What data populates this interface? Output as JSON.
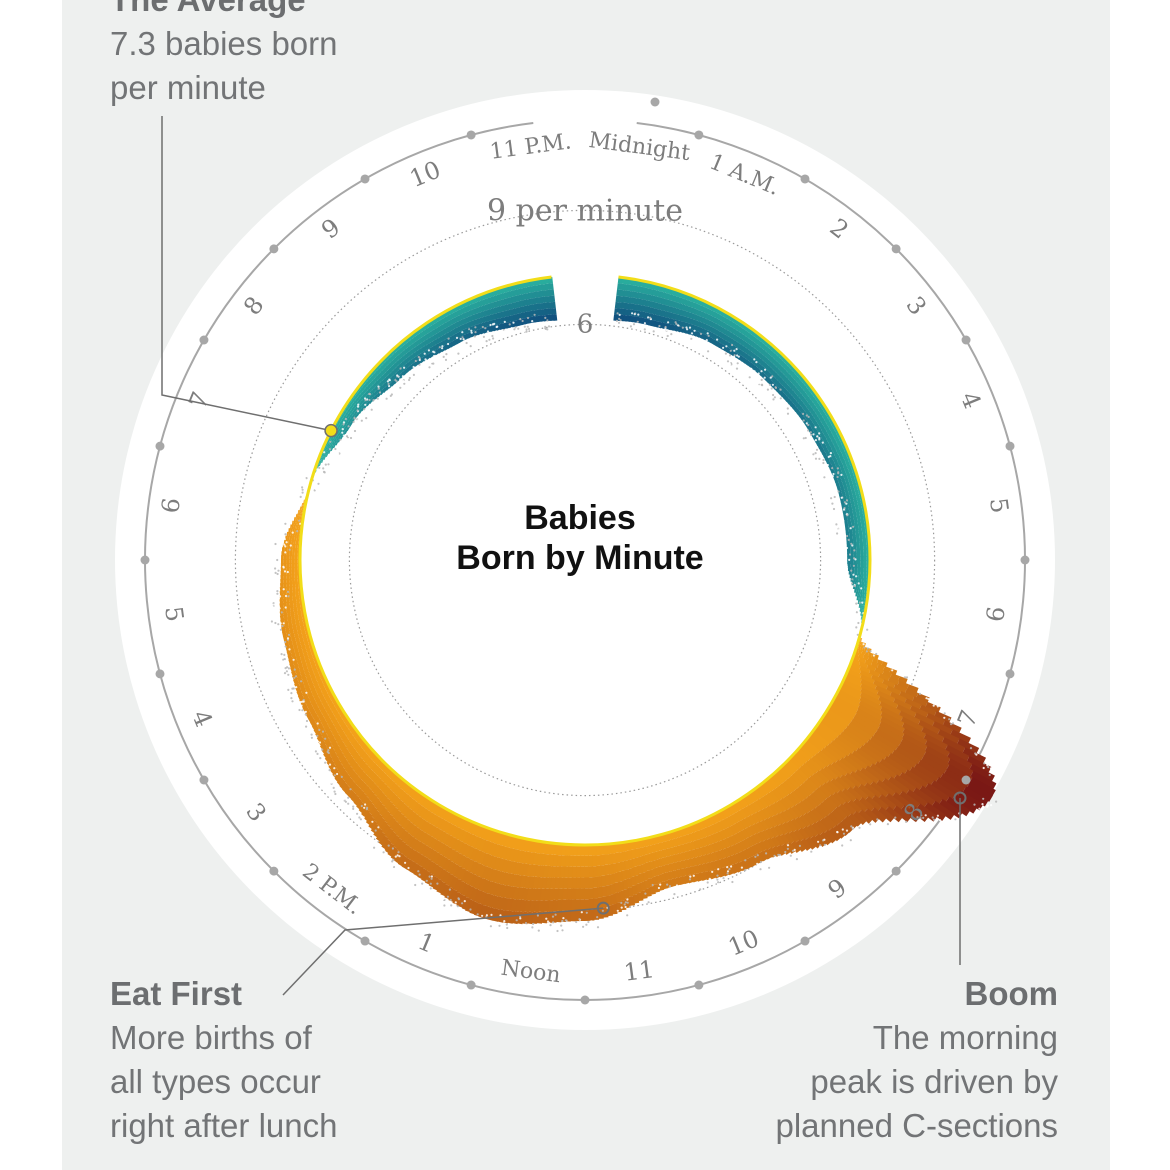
{
  "title_lines": [
    "Babies",
    "Born by Minute"
  ],
  "annotations": {
    "average": {
      "title": "The Average",
      "body": [
        "7.3 babies born",
        "per minute"
      ]
    },
    "eat_first": {
      "title": "Eat First",
      "body": [
        "More births of",
        "all types occur",
        "right after lunch"
      ]
    },
    "boom": {
      "title": "Boom",
      "body": [
        "The morning",
        "peak is driven by",
        "planned C-sections"
      ]
    }
  },
  "scale_labels": {
    "inner": "6",
    "outer": "9 per minute"
  },
  "chart_data": {
    "type": "area",
    "form": "radial",
    "clock": "24-hour, midnight at top, clockwise",
    "unit": "births per minute",
    "average": 7.3,
    "reference_rings": [
      6,
      9
    ],
    "hour_labels": [
      "Midnight",
      "1 A.M.",
      "2",
      "3",
      "4",
      "5",
      "6",
      "7",
      "8",
      "9",
      "10",
      "11",
      "Noon",
      "1",
      "2 P.M.",
      "3",
      "4",
      "5",
      "6",
      "7",
      "8",
      "9",
      "10",
      "11 P.M."
    ],
    "x": [
      0,
      1,
      2,
      3,
      4,
      5,
      6,
      7,
      8,
      9,
      10,
      11,
      12,
      13,
      14,
      15,
      16,
      17,
      18,
      19,
      20,
      21,
      22,
      23,
      24
    ],
    "y": [
      6.1,
      6.2,
      6.4,
      6.5,
      6.6,
      6.7,
      6.7,
      7.3,
      12.2,
      9.8,
      9.0,
      8.7,
      9.3,
      9.6,
      9.2,
      8.6,
      8.2,
      8.0,
      7.8,
      7.3,
      6.9,
      6.6,
      6.4,
      6.2,
      6.1
    ],
    "colors": {
      "below_low": "#0b3c78",
      "below_high": "#2bb3a0",
      "above_low": "#f5a31a",
      "above_high": "#6e0a14",
      "average_line": "#f2dd19"
    }
  }
}
